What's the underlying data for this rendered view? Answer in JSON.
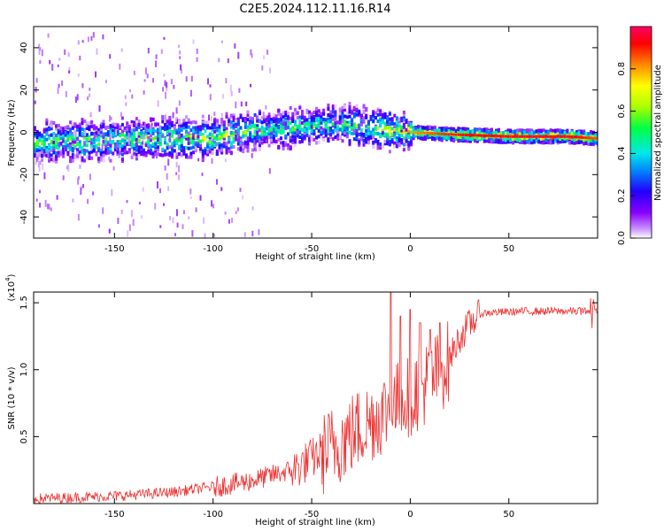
{
  "title": "C2E5.2024.112.11.16.R14",
  "chart_data": [
    {
      "type": "heatmap",
      "xlabel": "Height of straight line (km)",
      "ylabel": "Frequency (Hz)",
      "xlim": [
        -191,
        95
      ],
      "ylim": [
        -50,
        50
      ],
      "xticks": [
        -150,
        -100,
        -50,
        0,
        50
      ],
      "yticks": [
        -40,
        -20,
        0,
        20,
        40
      ],
      "colorbar": {
        "label": "Normalized spectral amplitude",
        "range": [
          0,
          1
        ],
        "ticks": [
          "0.0",
          "0.2",
          "0.4",
          "0.6",
          "0.8"
        ],
        "colors": [
          "#ffffff",
          "#cc99ff",
          "#8800ff",
          "#2200ff",
          "#0088ff",
          "#00e8e8",
          "#00ff44",
          "#aaff00",
          "#ffff00",
          "#ff8800",
          "#ff0000",
          "#ff0066"
        ]
      },
      "ridge": [
        {
          "x": -190,
          "freq": -5,
          "amp": 0.55
        },
        {
          "x": -175,
          "freq": -4,
          "amp": 0.6
        },
        {
          "x": -160,
          "freq": -4,
          "amp": 0.6
        },
        {
          "x": -140,
          "freq": -3,
          "amp": 0.6
        },
        {
          "x": -120,
          "freq": -3,
          "amp": 0.65
        },
        {
          "x": -100,
          "freq": -3,
          "amp": 0.7
        },
        {
          "x": -80,
          "freq": 1,
          "amp": 0.6
        },
        {
          "x": -60,
          "freq": 2,
          "amp": 0.55
        },
        {
          "x": -40,
          "freq": 4,
          "amp": 0.55
        },
        {
          "x": -20,
          "freq": 2,
          "amp": 0.6
        },
        {
          "x": 0,
          "freq": 0,
          "amp": 0.8
        },
        {
          "x": 20,
          "freq": -1,
          "amp": 0.9
        },
        {
          "x": 50,
          "freq": -2,
          "amp": 0.95
        },
        {
          "x": 80,
          "freq": -2,
          "amp": 0.95
        },
        {
          "x": 95,
          "freq": -3,
          "amp": 0.85
        }
      ]
    },
    {
      "type": "line",
      "xlabel": "Height of straight line (km)",
      "ylabel": "SNR (10 * v/v)",
      "scale_note": "(x10",
      "scale_exp": "4",
      "scale_close": ")",
      "xlim": [
        -191,
        95
      ],
      "ylim": [
        0,
        1.58
      ],
      "xticks": [
        -150,
        -100,
        -50,
        0,
        50
      ],
      "yticks": [
        0.5,
        1.0,
        1.5
      ],
      "ytick_labels": [
        "0.5",
        "1.0",
        "1.5"
      ],
      "series": [
        {
          "color": "#ee3333",
          "trend": [
            [
              -191,
              0.04
            ],
            [
              -150,
              0.06
            ],
            [
              -120,
              0.09
            ],
            [
              -100,
              0.13
            ],
            [
              -80,
              0.18
            ],
            [
              -60,
              0.26
            ],
            [
              -50,
              0.35
            ],
            [
              -40,
              0.45
            ],
            [
              -30,
              0.55
            ],
            [
              -20,
              0.65
            ],
            [
              -10,
              0.75
            ],
            [
              0,
              0.85
            ],
            [
              10,
              0.95
            ],
            [
              20,
              1.1
            ],
            [
              25,
              1.25
            ],
            [
              30,
              1.35
            ],
            [
              35,
              1.42
            ],
            [
              40,
              1.43
            ],
            [
              60,
              1.44
            ],
            [
              80,
              1.44
            ],
            [
              95,
              1.44
            ]
          ],
          "peak": [
            [
              -10,
              1.58
            ],
            [
              -5,
              1.4
            ],
            [
              0,
              1.45
            ],
            [
              5,
              1.35
            ],
            [
              10,
              1.3
            ],
            [
              15,
              1.35
            ]
          ]
        }
      ]
    }
  ]
}
